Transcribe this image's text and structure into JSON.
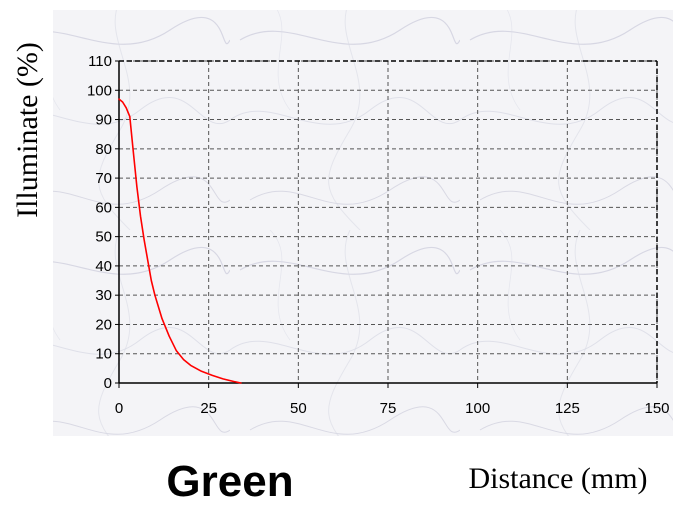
{
  "caption": "Green",
  "chart_data": {
    "type": "line",
    "title": "",
    "xlabel": "Distance (mm)",
    "ylabel": "Illuminate (%)",
    "xlim": [
      0,
      150
    ],
    "ylim": [
      0,
      110
    ],
    "xticks": [
      0,
      25,
      50,
      75,
      100,
      125,
      150
    ],
    "yticks": [
      0,
      10,
      20,
      30,
      40,
      50,
      60,
      70,
      80,
      90,
      100,
      110
    ],
    "grid": true,
    "series": [
      {
        "color": "#ff0000",
        "x": [
          0,
          1,
          2,
          3,
          4,
          5,
          6,
          7,
          8,
          9,
          10,
          12,
          14,
          16,
          18,
          20,
          23,
          26,
          29,
          32,
          34
        ],
        "y": [
          97,
          96,
          94,
          91,
          79,
          67,
          57,
          49,
          42,
          35,
          30,
          22,
          16,
          11,
          8,
          6,
          4,
          2.6,
          1.4,
          0.5,
          0
        ]
      }
    ]
  },
  "colors": {
    "plot_background": "#f3f3f6",
    "grid": "#555555",
    "axis": "#000000"
  }
}
